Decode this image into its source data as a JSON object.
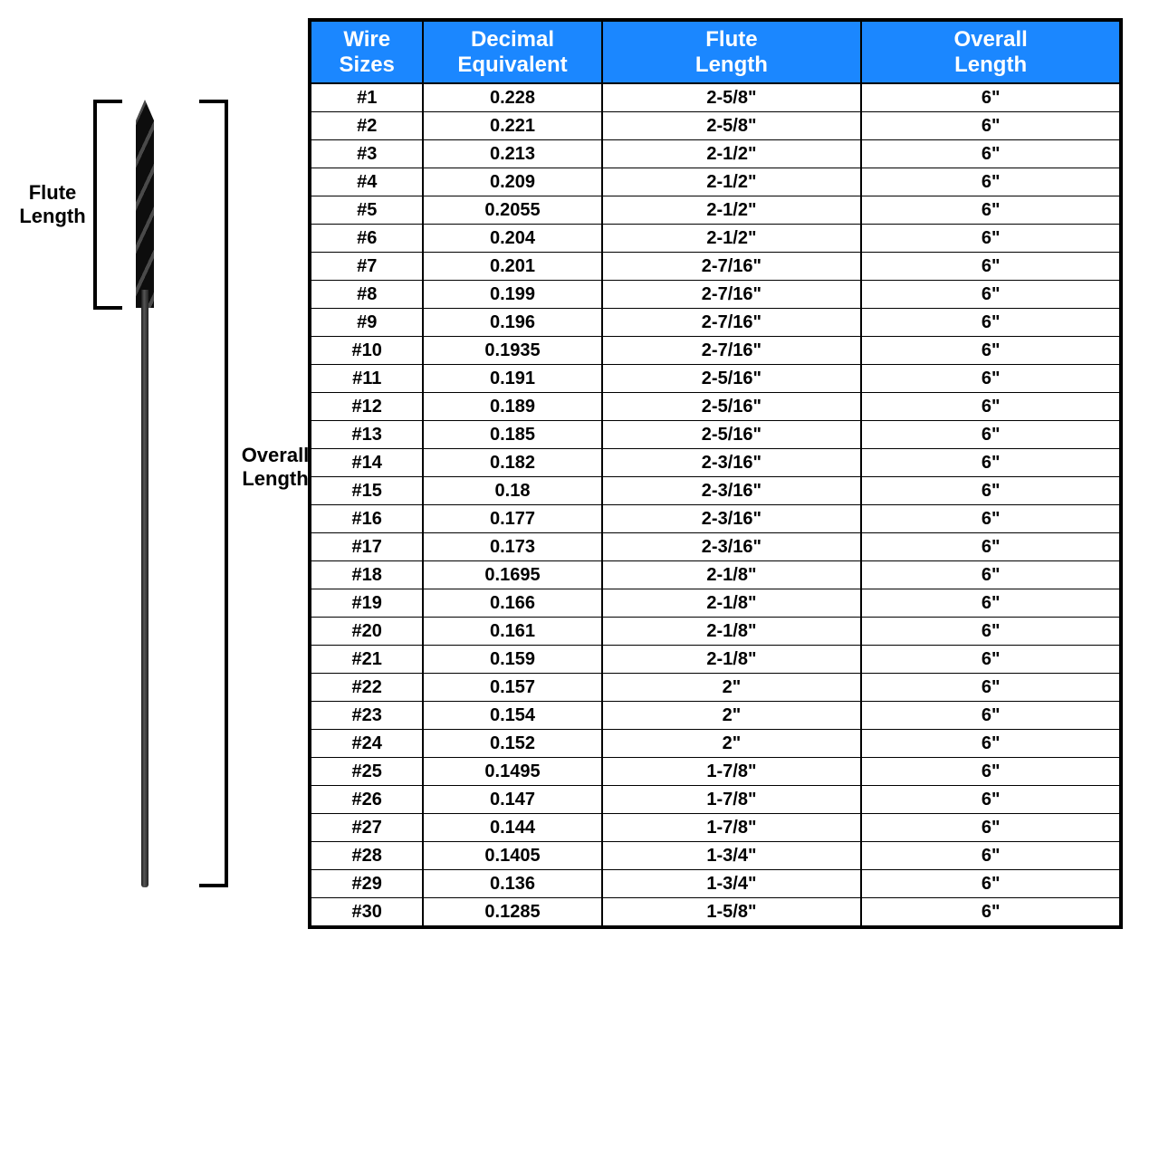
{
  "diagram": {
    "flute_label": "Flute Length",
    "overall_label": "Overall Length"
  },
  "table": {
    "header_bg": "#1b87ff",
    "header_fg": "#ffffff",
    "columns": [
      "Wire Sizes",
      "Decimal Equivalent",
      "Flute Length",
      "Overall Length"
    ],
    "rows": [
      [
        "#1",
        "0.228",
        "2-5/8\"",
        "6\""
      ],
      [
        "#2",
        "0.221",
        "2-5/8\"",
        "6\""
      ],
      [
        "#3",
        "0.213",
        "2-1/2\"",
        "6\""
      ],
      [
        "#4",
        "0.209",
        "2-1/2\"",
        "6\""
      ],
      [
        "#5",
        "0.2055",
        "2-1/2\"",
        "6\""
      ],
      [
        "#6",
        "0.204",
        "2-1/2\"",
        "6\""
      ],
      [
        "#7",
        "0.201",
        "2-7/16\"",
        "6\""
      ],
      [
        "#8",
        "0.199",
        "2-7/16\"",
        "6\""
      ],
      [
        "#9",
        "0.196",
        "2-7/16\"",
        "6\""
      ],
      [
        "#10",
        "0.1935",
        "2-7/16\"",
        "6\""
      ],
      [
        "#11",
        "0.191",
        "2-5/16\"",
        "6\""
      ],
      [
        "#12",
        "0.189",
        "2-5/16\"",
        "6\""
      ],
      [
        "#13",
        "0.185",
        "2-5/16\"",
        "6\""
      ],
      [
        "#14",
        "0.182",
        "2-3/16\"",
        "6\""
      ],
      [
        "#15",
        "0.18",
        "2-3/16\"",
        "6\""
      ],
      [
        "#16",
        "0.177",
        "2-3/16\"",
        "6\""
      ],
      [
        "#17",
        "0.173",
        "2-3/16\"",
        "6\""
      ],
      [
        "#18",
        "0.1695",
        "2-1/8\"",
        "6\""
      ],
      [
        "#19",
        "0.166",
        "2-1/8\"",
        "6\""
      ],
      [
        "#20",
        "0.161",
        "2-1/8\"",
        "6\""
      ],
      [
        "#21",
        "0.159",
        "2-1/8\"",
        "6\""
      ],
      [
        "#22",
        "0.157",
        "2\"",
        "6\""
      ],
      [
        "#23",
        "0.154",
        "2\"",
        "6\""
      ],
      [
        "#24",
        "0.152",
        "2\"",
        "6\""
      ],
      [
        "#25",
        "0.1495",
        "1-7/8\"",
        "6\""
      ],
      [
        "#26",
        "0.147",
        "1-7/8\"",
        "6\""
      ],
      [
        "#27",
        "0.144",
        "1-7/8\"",
        "6\""
      ],
      [
        "#28",
        "0.1405",
        "1-3/4\"",
        "6\""
      ],
      [
        "#29",
        "0.136",
        "1-3/4\"",
        "6\""
      ],
      [
        "#30",
        "0.1285",
        "1-5/8\"",
        "6\""
      ]
    ]
  }
}
